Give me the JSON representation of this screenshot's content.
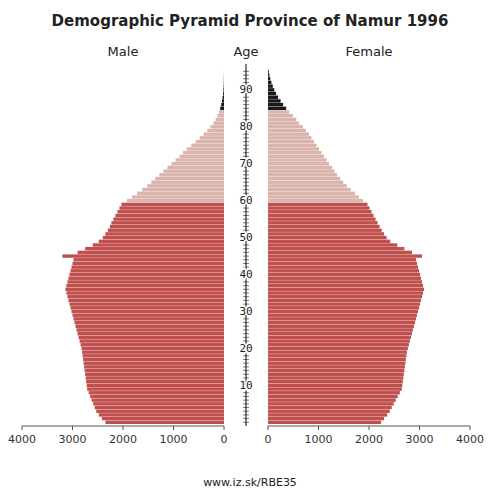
{
  "chart_data": {
    "type": "pyramid",
    "orientation": "horizontal",
    "title": "Demographic Pyramid Province of Namur 1996",
    "ylabel": "Age",
    "annotations": [
      "www.iz.sk/RBE35"
    ],
    "y": [
      0,
      1,
      2,
      3,
      4,
      5,
      6,
      7,
      8,
      9,
      10,
      11,
      12,
      13,
      14,
      15,
      16,
      17,
      18,
      19,
      20,
      21,
      22,
      23,
      24,
      25,
      26,
      27,
      28,
      29,
      30,
      31,
      32,
      33,
      34,
      35,
      36,
      37,
      38,
      39,
      40,
      41,
      42,
      43,
      44,
      45,
      46,
      47,
      48,
      49,
      50,
      51,
      52,
      53,
      54,
      55,
      56,
      57,
      58,
      59,
      60,
      61,
      62,
      63,
      64,
      65,
      66,
      67,
      68,
      69,
      70,
      71,
      72,
      73,
      74,
      75,
      76,
      77,
      78,
      79,
      80,
      81,
      82,
      83,
      84,
      85,
      86,
      87,
      88,
      89,
      90,
      91,
      92,
      93,
      94,
      95
    ],
    "ylim": [
      -1,
      97
    ],
    "yticks": [
      10,
      20,
      30,
      40,
      50,
      60,
      70,
      80,
      90
    ],
    "xlim": [
      0,
      4000
    ],
    "xticks": [
      0,
      1000,
      2000,
      3000,
      4000
    ],
    "grid": false,
    "series": [
      {
        "name": "Male",
        "values": [
          2350,
          2420,
          2480,
          2530,
          2560,
          2590,
          2620,
          2650,
          2680,
          2710,
          2720,
          2730,
          2740,
          2750,
          2760,
          2770,
          2780,
          2790,
          2800,
          2810,
          2820,
          2840,
          2860,
          2880,
          2900,
          2920,
          2940,
          2960,
          2980,
          3000,
          3020,
          3040,
          3060,
          3080,
          3100,
          3120,
          3140,
          3120,
          3100,
          3080,
          3060,
          3040,
          3020,
          3000,
          2980,
          3200,
          2900,
          2750,
          2600,
          2480,
          2400,
          2350,
          2300,
          2260,
          2230,
          2190,
          2150,
          2110,
          2070,
          2030,
          1920,
          1820,
          1720,
          1620,
          1520,
          1440,
          1360,
          1280,
          1200,
          1120,
          1040,
          960,
          880,
          810,
          740,
          650,
          560,
          480,
          400,
          330,
          270,
          210,
          165,
          130,
          100,
          75,
          55,
          40,
          28,
          18,
          12,
          8,
          5,
          3,
          2,
          1
        ],
        "colors": [
          "#c0504d",
          "#c0504d",
          "#c0504d",
          "#c0504d",
          "#c0504d",
          "#c0504d",
          "#c0504d",
          "#c0504d",
          "#c0504d",
          "#c0504d",
          "#c0504d",
          "#c0504d",
          "#c0504d",
          "#c0504d",
          "#c0504d",
          "#c0504d",
          "#c0504d",
          "#c0504d",
          "#c0504d",
          "#c0504d",
          "#c0504d",
          "#c0504d",
          "#c0504d",
          "#c0504d",
          "#c0504d",
          "#c0504d",
          "#c0504d",
          "#c0504d",
          "#c0504d",
          "#c0504d",
          "#c0504d",
          "#c0504d",
          "#c0504d",
          "#c0504d",
          "#c0504d",
          "#c0504d",
          "#c0504d",
          "#c0504d",
          "#c0504d",
          "#c0504d",
          "#c0504d",
          "#c0504d",
          "#c0504d",
          "#c0504d",
          "#c0504d",
          "#c0504d",
          "#c0504d",
          "#c0504d",
          "#c0504d",
          "#c0504d",
          "#c0504d",
          "#c0504d",
          "#c0504d",
          "#c0504d",
          "#c0504d",
          "#c0504d",
          "#c0504d",
          "#c0504d",
          "#c0504d",
          "#c0504d",
          "#d9b5ad",
          "#d9b5ad",
          "#d9b5ad",
          "#d9b5ad",
          "#d9b5ad",
          "#d9b5ad",
          "#d9b5ad",
          "#d9b5ad",
          "#d9b5ad",
          "#d9b5ad",
          "#d9b5ad",
          "#d9b5ad",
          "#d9b5ad",
          "#d9b5ad",
          "#d9b5ad",
          "#d9b5ad",
          "#d9b5ad",
          "#d9b5ad",
          "#d9b5ad",
          "#d9b5ad",
          "#d9b5ad",
          "#d9b5ad",
          "#d9b5ad",
          "#d9b5ad",
          "#d9b5ad",
          "#1a1a1a",
          "#1a1a1a",
          "#1a1a1a",
          "#1a1a1a",
          "#1a1a1a",
          "#1a1a1a",
          "#1a1a1a",
          "#1a1a1a",
          "#1a1a1a",
          "#1a1a1a",
          "#1a1a1a"
        ]
      },
      {
        "name": "Female",
        "values": [
          2240,
          2300,
          2360,
          2410,
          2450,
          2490,
          2530,
          2570,
          2610,
          2650,
          2660,
          2670,
          2680,
          2690,
          2700,
          2710,
          2720,
          2730,
          2740,
          2750,
          2770,
          2790,
          2810,
          2830,
          2850,
          2870,
          2890,
          2910,
          2930,
          2950,
          2970,
          2990,
          3010,
          3030,
          3050,
          3070,
          3090,
          3070,
          3050,
          3030,
          3010,
          2990,
          2970,
          2950,
          2930,
          3050,
          2850,
          2700,
          2560,
          2420,
          2350,
          2300,
          2250,
          2210,
          2170,
          2130,
          2090,
          2050,
          2010,
          1970,
          1880,
          1800,
          1720,
          1640,
          1560,
          1490,
          1430,
          1370,
          1320,
          1270,
          1210,
          1160,
          1110,
          1060,
          1010,
          960,
          910,
          860,
          810,
          750,
          690,
          620,
          560,
          490,
          420,
          360,
          300,
          250,
          200,
          160,
          125,
          95,
          68,
          45,
          28,
          16
        ],
        "colors": [
          "#c0504d",
          "#c0504d",
          "#c0504d",
          "#c0504d",
          "#c0504d",
          "#c0504d",
          "#c0504d",
          "#c0504d",
          "#c0504d",
          "#c0504d",
          "#c0504d",
          "#c0504d",
          "#c0504d",
          "#c0504d",
          "#c0504d",
          "#c0504d",
          "#c0504d",
          "#c0504d",
          "#c0504d",
          "#c0504d",
          "#c0504d",
          "#c0504d",
          "#c0504d",
          "#c0504d",
          "#c0504d",
          "#c0504d",
          "#c0504d",
          "#c0504d",
          "#c0504d",
          "#c0504d",
          "#c0504d",
          "#c0504d",
          "#c0504d",
          "#c0504d",
          "#c0504d",
          "#c0504d",
          "#c0504d",
          "#c0504d",
          "#c0504d",
          "#c0504d",
          "#c0504d",
          "#c0504d",
          "#c0504d",
          "#c0504d",
          "#c0504d",
          "#c0504d",
          "#c0504d",
          "#c0504d",
          "#c0504d",
          "#c0504d",
          "#c0504d",
          "#c0504d",
          "#c0504d",
          "#c0504d",
          "#c0504d",
          "#c0504d",
          "#c0504d",
          "#c0504d",
          "#c0504d",
          "#c0504d",
          "#d9b5ad",
          "#d9b5ad",
          "#d9b5ad",
          "#d9b5ad",
          "#d9b5ad",
          "#d9b5ad",
          "#d9b5ad",
          "#d9b5ad",
          "#d9b5ad",
          "#d9b5ad",
          "#d9b5ad",
          "#d9b5ad",
          "#d9b5ad",
          "#d9b5ad",
          "#d9b5ad",
          "#d9b5ad",
          "#d9b5ad",
          "#d9b5ad",
          "#d9b5ad",
          "#d9b5ad",
          "#d9b5ad",
          "#d9b5ad",
          "#d9b5ad",
          "#d9b5ad",
          "#d9b5ad",
          "#1a1a1a",
          "#1a1a1a",
          "#1a1a1a",
          "#1a1a1a",
          "#1a1a1a",
          "#1a1a1a",
          "#1a1a1a",
          "#1a1a1a",
          "#1a1a1a",
          "#1a1a1a",
          "#1a1a1a"
        ]
      }
    ]
  }
}
